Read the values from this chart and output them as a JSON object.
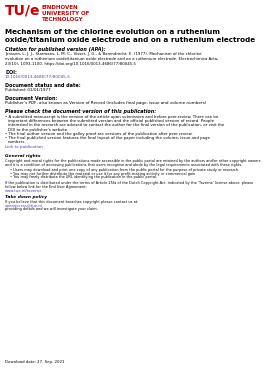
{
  "bg_color": "#ffffff",
  "logo_red": "#cc0000",
  "doi_color": "#4444bb",
  "link_color": "#4444bb",
  "taverne_color": "#4444bb",
  "openaccess_color": "#4444bb",
  "logo_tue": "TU/e",
  "logo_sub1": "EINDHOVEN",
  "logo_sub2": "UNIVERSITY OF",
  "logo_sub3": "TECHNOLOGY",
  "title_line1": "Mechanism of the chlorine evolution on a ruthenium",
  "title_line2": "oxide/titanium oxide electrode and on a ruthenium electrode",
  "citation_label": "Citation for published version (APA):",
  "citation_lines": [
    "Janssen, L. J. J., Starmans, L. M. C., Visser, J. G., & Barendrecht, E. (1977). Mechanism of the chlorine",
    "evolution on a ruthenium oxide/titanium oxide electrode and on a ruthenium electrode. Electrochimica Acta,",
    "23(10), 1093-1100. https://doi.org/10.1016/0013-4686(77)80045-5"
  ],
  "doi_label": "DOI:",
  "doi_link": "10.1016/0013-4686(77)80045-5",
  "status_label": "Document status and date:",
  "status_text": "Published: 01/01/1977",
  "version_label": "Document Version:",
  "version_text": "Publisher’s PDF, also known as Version of Record (includes final page, issue and volume numbers)",
  "check_label": "Please check the document version of this publication:",
  "check1_lines": [
    "• A submitted manuscript is the version of the article upon submission and before peer-review. There can be",
    "important differences between the submitted version and the official published version of record. People",
    "interested in the research are advised to contact the author for the final version of the publication, or visit the",
    "DOI to the publisher’s website."
  ],
  "check2": "• The final author version and the galley proof are versions of the publication after peer review.",
  "check3_lines": [
    "• The final published version features the final layout of the paper including the volume, issue and page",
    "numbers."
  ],
  "link_label": "Link to publication",
  "general_label": "General rights",
  "general_lines": [
    "Copyright and moral rights for the publications made accessible in the public portal are retained by the authors and/or other copyright owners",
    "and it is a condition of accessing publications that users recognise and abide by the legal requirements associated with these rights."
  ],
  "general_bullets": [
    "• Users may download and print one copy of any publication from the public portal for the purpose of private study or research.",
    "• You may not further distribute the material or use it for any profit-making activity or commercial gain",
    "• You may freely distribute the URL identifying the publication in the public portal."
  ],
  "if_lines": [
    "If the publication is distributed under the terms of Article 25fa of the Dutch Copyright Act, indicated by the ‘Taverne’ license above, please",
    "follow below link for the End User Agreement:"
  ],
  "taverne_link": "www.tue.nl/taverne",
  "takedown_label": "Take down policy",
  "takedown_text": "If you believe that this document breaches copyright please contact us at:",
  "openaccess_link": "openaccess@tue.nl",
  "providing_text": "providing details and we will investigate your claim.",
  "download_text": "Download date: 27. Sep. 2021"
}
